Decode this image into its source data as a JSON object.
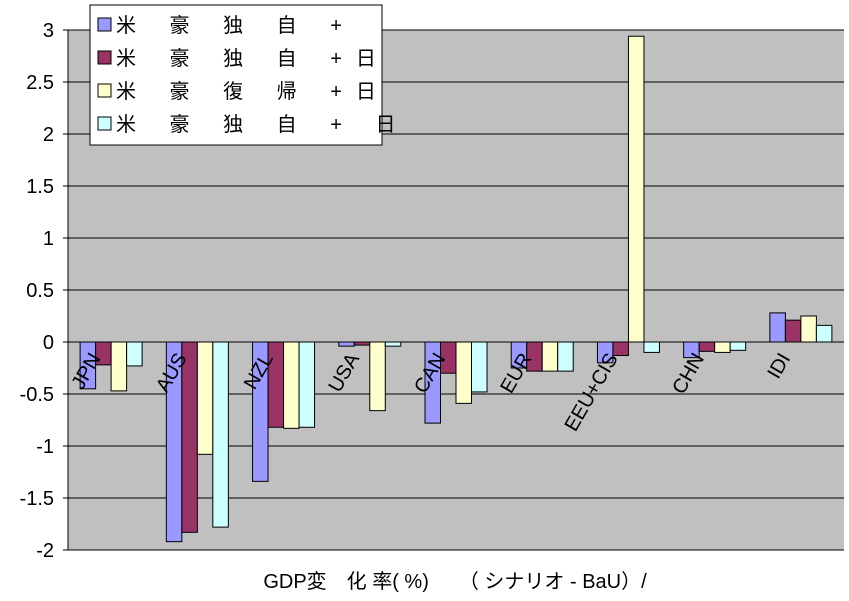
{
  "chart_data": {
    "type": "bar",
    "title": "",
    "xlabel": "GDP変　化 率( %)　　（ シナリオ - BaU）/",
    "ylabel": "",
    "ylim": [
      -2,
      3
    ],
    "yticks": [
      3,
      2.5,
      2,
      1.5,
      1,
      0.5,
      0,
      -0.5,
      -1,
      -1.5,
      -2
    ],
    "grid": true,
    "legend_position": "top-left",
    "categories": [
      "JPN",
      "AUS",
      "NZL",
      "USA",
      "CAN",
      "EUR",
      "EEU+CIS",
      "CHN",
      "IDI"
    ],
    "series": [
      {
        "name": "米 豪 独 自 +",
        "color": "#9999ff",
        "values": [
          -0.45,
          -1.92,
          -1.34,
          -0.04,
          -0.78,
          -0.25,
          -0.2,
          -0.15,
          0.28
        ]
      },
      {
        "name": "米 豪 独 自 +日",
        "color": "#993366",
        "values": [
          -0.22,
          -1.83,
          -0.82,
          -0.03,
          -0.3,
          -0.28,
          -0.13,
          -0.09,
          0.21
        ]
      },
      {
        "name": "米 豪 復 帰 +日",
        "color": "#ffffcc",
        "values": [
          -0.47,
          -1.08,
          -0.83,
          -0.66,
          -0.59,
          -0.28,
          2.94,
          -0.1,
          0.25
        ]
      },
      {
        "name": "米 豪 独 自 + 日",
        "color": "#ccffff",
        "values": [
          -0.23,
          -1.78,
          -0.82,
          -0.04,
          -0.48,
          -0.28,
          -0.1,
          -0.08,
          0.16
        ]
      }
    ],
    "plot_background": "#c0c0c0"
  }
}
